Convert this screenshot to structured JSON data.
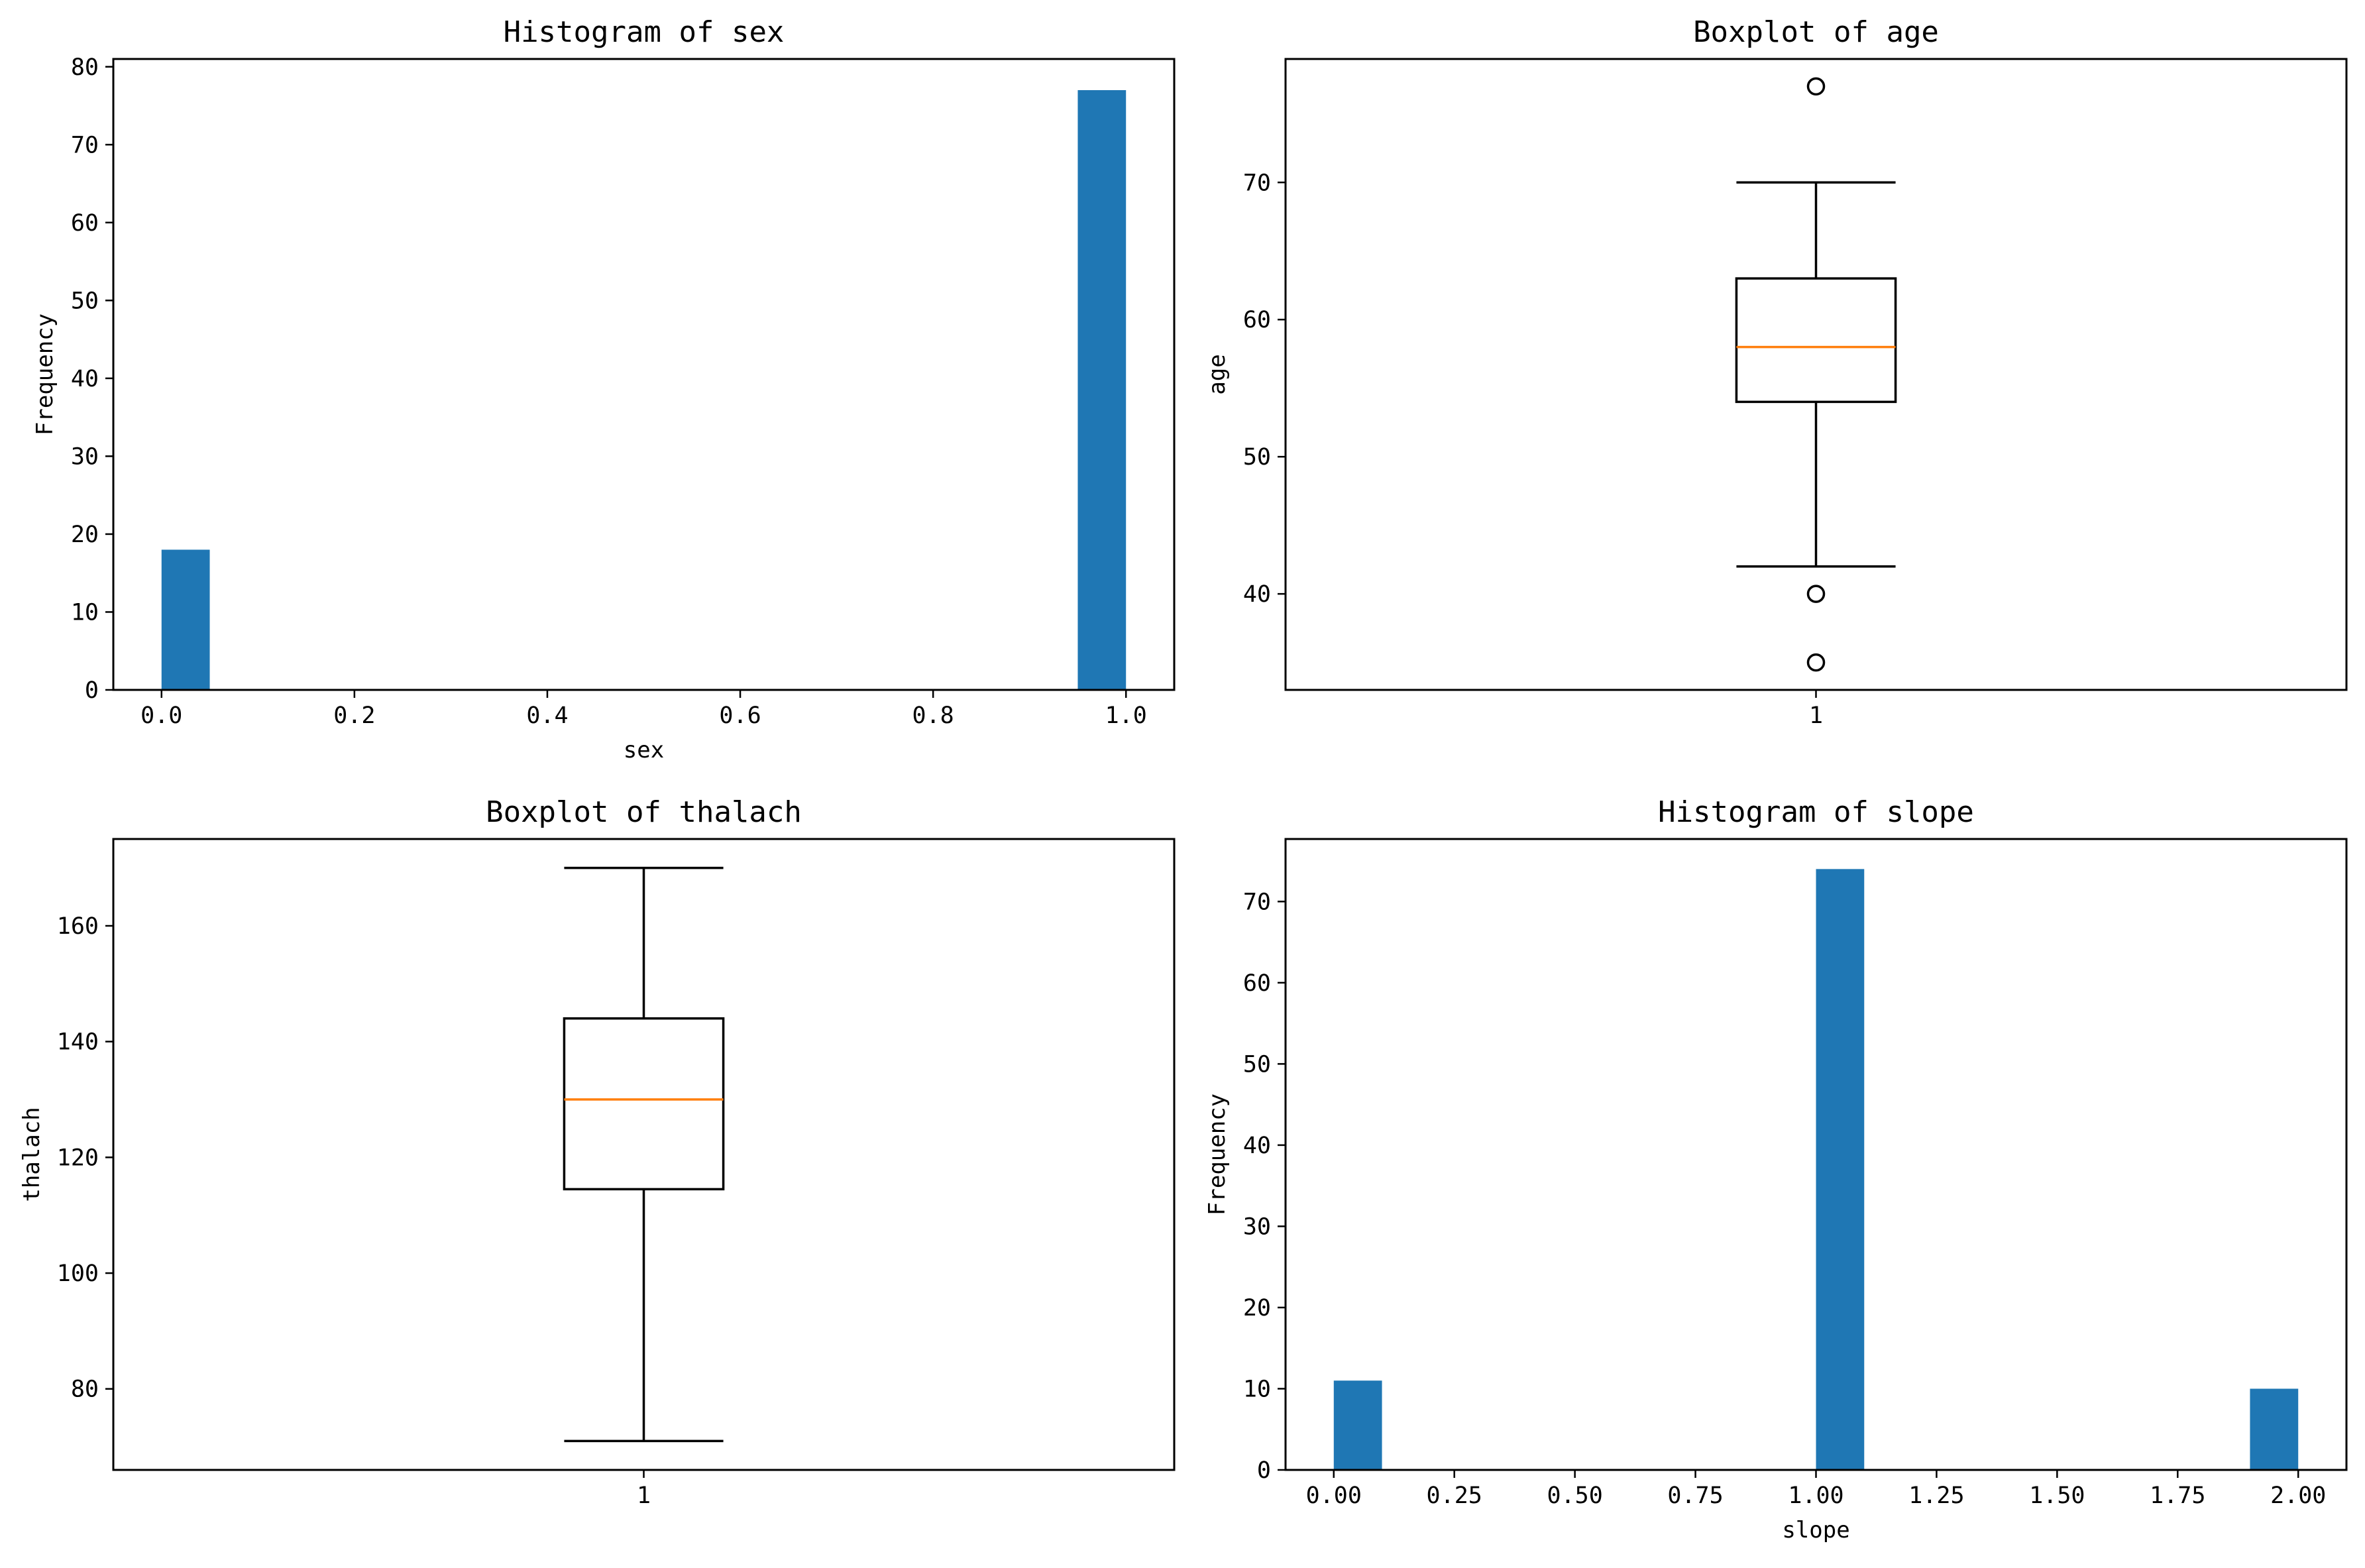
{
  "colors": {
    "bar": "#1f77b4",
    "median": "#ff7f0e",
    "line": "#000000"
  },
  "chart_data": [
    {
      "type": "bar",
      "subtype": "histogram",
      "title": "Histogram of sex",
      "xlabel": "sex",
      "ylabel": "Frequency",
      "bars": [
        {
          "x0": 0.0,
          "x1": 0.05,
          "count": 18
        },
        {
          "x0": 0.95,
          "x1": 1.0,
          "count": 77
        }
      ],
      "xlim": [
        -0.05,
        1.05
      ],
      "ylim": [
        0,
        81
      ],
      "xticks": [
        0.0,
        0.2,
        0.4,
        0.6,
        0.8,
        1.0
      ],
      "xtick_labels": [
        "0.0",
        "0.2",
        "0.4",
        "0.6",
        "0.8",
        "1.0"
      ],
      "yticks": [
        0,
        10,
        20,
        30,
        40,
        50,
        60,
        70,
        80
      ],
      "ytick_labels": [
        "0",
        "10",
        "20",
        "30",
        "40",
        "50",
        "60",
        "70",
        "80"
      ],
      "grid": false
    },
    {
      "type": "boxplot",
      "title": "Boxplot of age",
      "xlabel": "",
      "ylabel": "age",
      "boxes": [
        {
          "position": 1,
          "whisker_low": 42,
          "q1": 54,
          "median": 58,
          "q3": 63,
          "whisker_high": 70,
          "fliers": [
            77,
            40,
            35
          ]
        }
      ],
      "xlim": [
        0.5,
        1.5
      ],
      "ylim": [
        33,
        79
      ],
      "xticks": [
        1
      ],
      "xtick_labels": [
        "1"
      ],
      "yticks": [
        40,
        50,
        60,
        70
      ],
      "ytick_labels": [
        "40",
        "50",
        "60",
        "70"
      ],
      "grid": false
    },
    {
      "type": "boxplot",
      "title": "Boxplot of thalach",
      "xlabel": "",
      "ylabel": "thalach",
      "boxes": [
        {
          "position": 1,
          "whisker_low": 71,
          "q1": 114.5,
          "median": 130,
          "q3": 144,
          "whisker_high": 170,
          "fliers": []
        }
      ],
      "xlim": [
        0.5,
        1.5
      ],
      "ylim": [
        66,
        175
      ],
      "xticks": [
        1
      ],
      "xtick_labels": [
        "1"
      ],
      "yticks": [
        80,
        100,
        120,
        140,
        160
      ],
      "ytick_labels": [
        "80",
        "100",
        "120",
        "140",
        "160"
      ],
      "grid": false
    },
    {
      "type": "bar",
      "subtype": "histogram",
      "title": "Histogram of slope",
      "xlabel": "slope",
      "ylabel": "Frequency",
      "bars": [
        {
          "x0": 0.0,
          "x1": 0.1,
          "count": 11
        },
        {
          "x0": 0.9,
          "x1": 1.0,
          "count": 0
        },
        {
          "x0": 1.0,
          "x1": 1.1,
          "count": 74
        },
        {
          "x0": 1.9,
          "x1": 2.0,
          "count": 10
        }
      ],
      "xlim": [
        -0.1,
        2.1
      ],
      "ylim": [
        0,
        77.7
      ],
      "xticks": [
        0.0,
        0.25,
        0.5,
        0.75,
        1.0,
        1.25,
        1.5,
        1.75,
        2.0
      ],
      "xtick_labels": [
        "0.00",
        "0.25",
        "0.50",
        "0.75",
        "1.00",
        "1.25",
        "1.50",
        "1.75",
        "2.00"
      ],
      "yticks": [
        0,
        10,
        20,
        30,
        40,
        50,
        60,
        70
      ],
      "ytick_labels": [
        "0",
        "10",
        "20",
        "30",
        "40",
        "50",
        "60",
        "70"
      ],
      "grid": false
    }
  ]
}
